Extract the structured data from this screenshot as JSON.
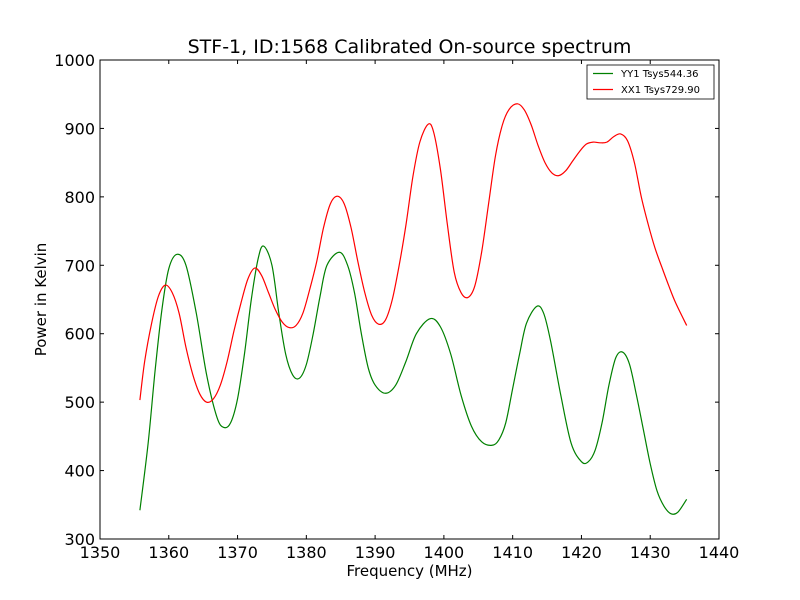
{
  "chart_data": {
    "type": "line",
    "title": "STF-1, ID:1568 Calibrated On-source spectrum",
    "xlabel": "Frequency (MHz)",
    "ylabel": "Power in Kelvin",
    "xlim": [
      1350,
      1440
    ],
    "ylim": [
      300,
      1000
    ],
    "xticks": [
      "1350",
      "1360",
      "1370",
      "1380",
      "1390",
      "1400",
      "1410",
      "1420",
      "1430",
      "1440"
    ],
    "yticks": [
      "300",
      "400",
      "500",
      "600",
      "700",
      "800",
      "900",
      "1000"
    ],
    "grid": false,
    "legend_position": "top-right",
    "series": [
      {
        "name": "YY1 Tsys544.36",
        "color": "#008000",
        "points": [
          [
            1355.8,
            342
          ],
          [
            1357.0,
            440
          ],
          [
            1358.0,
            545
          ],
          [
            1359.0,
            635
          ],
          [
            1360.0,
            695
          ],
          [
            1361.2,
            716
          ],
          [
            1362.5,
            700
          ],
          [
            1364.0,
            630
          ],
          [
            1365.5,
            540
          ],
          [
            1367.0,
            478
          ],
          [
            1368.0,
            463
          ],
          [
            1369.0,
            470
          ],
          [
            1370.0,
            505
          ],
          [
            1371.0,
            570
          ],
          [
            1372.0,
            650
          ],
          [
            1373.0,
            710
          ],
          [
            1373.8,
            728
          ],
          [
            1375.0,
            700
          ],
          [
            1376.0,
            630
          ],
          [
            1377.0,
            570
          ],
          [
            1378.0,
            540
          ],
          [
            1379.0,
            535
          ],
          [
            1380.0,
            555
          ],
          [
            1381.0,
            600
          ],
          [
            1382.0,
            655
          ],
          [
            1383.0,
            700
          ],
          [
            1384.8,
            719
          ],
          [
            1386.0,
            700
          ],
          [
            1387.0,
            660
          ],
          [
            1388.0,
            600
          ],
          [
            1389.0,
            550
          ],
          [
            1390.0,
            525
          ],
          [
            1391.5,
            513
          ],
          [
            1393.0,
            525
          ],
          [
            1394.5,
            560
          ],
          [
            1396.0,
            600
          ],
          [
            1398.0,
            622
          ],
          [
            1399.5,
            610
          ],
          [
            1401.0,
            570
          ],
          [
            1402.5,
            510
          ],
          [
            1404.0,
            465
          ],
          [
            1405.5,
            442
          ],
          [
            1407.0,
            437
          ],
          [
            1408.0,
            445
          ],
          [
            1409.0,
            470
          ],
          [
            1410.0,
            520
          ],
          [
            1411.0,
            570
          ],
          [
            1412.0,
            615
          ],
          [
            1413.5,
            640
          ],
          [
            1414.5,
            630
          ],
          [
            1415.5,
            590
          ],
          [
            1417.0,
            510
          ],
          [
            1418.5,
            440
          ],
          [
            1420.0,
            413
          ],
          [
            1421.0,
            413
          ],
          [
            1422.0,
            430
          ],
          [
            1423.0,
            470
          ],
          [
            1424.0,
            525
          ],
          [
            1425.0,
            565
          ],
          [
            1426.0,
            573
          ],
          [
            1427.0,
            555
          ],
          [
            1428.0,
            510
          ],
          [
            1429.0,
            460
          ],
          [
            1430.0,
            410
          ],
          [
            1431.0,
            370
          ],
          [
            1432.0,
            348
          ],
          [
            1433.0,
            337
          ],
          [
            1434.0,
            339
          ],
          [
            1435.3,
            358
          ]
        ]
      },
      {
        "name": "XX1 Tsys729.90",
        "color": "#ff0000",
        "points": [
          [
            1355.8,
            503
          ],
          [
            1356.5,
            560
          ],
          [
            1357.5,
            615
          ],
          [
            1358.5,
            655
          ],
          [
            1359.5,
            671
          ],
          [
            1360.5,
            660
          ],
          [
            1361.5,
            630
          ],
          [
            1362.5,
            580
          ],
          [
            1363.5,
            540
          ],
          [
            1364.5,
            512
          ],
          [
            1365.5,
            500
          ],
          [
            1366.5,
            505
          ],
          [
            1367.5,
            525
          ],
          [
            1368.5,
            560
          ],
          [
            1369.5,
            605
          ],
          [
            1370.5,
            645
          ],
          [
            1371.5,
            680
          ],
          [
            1372.5,
            696
          ],
          [
            1373.5,
            685
          ],
          [
            1374.5,
            660
          ],
          [
            1375.5,
            635
          ],
          [
            1376.5,
            617
          ],
          [
            1377.5,
            609
          ],
          [
            1378.5,
            612
          ],
          [
            1379.5,
            630
          ],
          [
            1380.5,
            665
          ],
          [
            1381.5,
            705
          ],
          [
            1382.5,
            755
          ],
          [
            1383.5,
            790
          ],
          [
            1384.5,
            801
          ],
          [
            1385.5,
            790
          ],
          [
            1386.5,
            755
          ],
          [
            1387.5,
            705
          ],
          [
            1388.5,
            660
          ],
          [
            1389.5,
            627
          ],
          [
            1390.5,
            614
          ],
          [
            1391.5,
            620
          ],
          [
            1392.5,
            650
          ],
          [
            1393.5,
            700
          ],
          [
            1394.5,
            760
          ],
          [
            1395.5,
            830
          ],
          [
            1396.5,
            880
          ],
          [
            1397.7,
            906
          ],
          [
            1398.5,
            895
          ],
          [
            1399.5,
            840
          ],
          [
            1400.5,
            760
          ],
          [
            1401.5,
            690
          ],
          [
            1402.5,
            660
          ],
          [
            1403.5,
            653
          ],
          [
            1404.5,
            670
          ],
          [
            1405.5,
            720
          ],
          [
            1406.5,
            790
          ],
          [
            1407.5,
            860
          ],
          [
            1408.5,
            905
          ],
          [
            1409.5,
            928
          ],
          [
            1410.7,
            936
          ],
          [
            1411.7,
            927
          ],
          [
            1412.7,
            905
          ],
          [
            1413.7,
            875
          ],
          [
            1414.7,
            850
          ],
          [
            1415.7,
            835
          ],
          [
            1416.7,
            831
          ],
          [
            1417.7,
            838
          ],
          [
            1418.7,
            852
          ],
          [
            1419.7,
            866
          ],
          [
            1420.7,
            877
          ],
          [
            1421.7,
            880
          ],
          [
            1422.7,
            879
          ],
          [
            1423.7,
            880
          ],
          [
            1424.7,
            888
          ],
          [
            1425.7,
            892
          ],
          [
            1426.7,
            882
          ],
          [
            1427.7,
            850
          ],
          [
            1428.7,
            800
          ],
          [
            1429.7,
            760
          ],
          [
            1430.7,
            725
          ],
          [
            1431.7,
            697
          ],
          [
            1432.7,
            670
          ],
          [
            1433.7,
            645
          ],
          [
            1435.3,
            612
          ]
        ]
      }
    ]
  }
}
